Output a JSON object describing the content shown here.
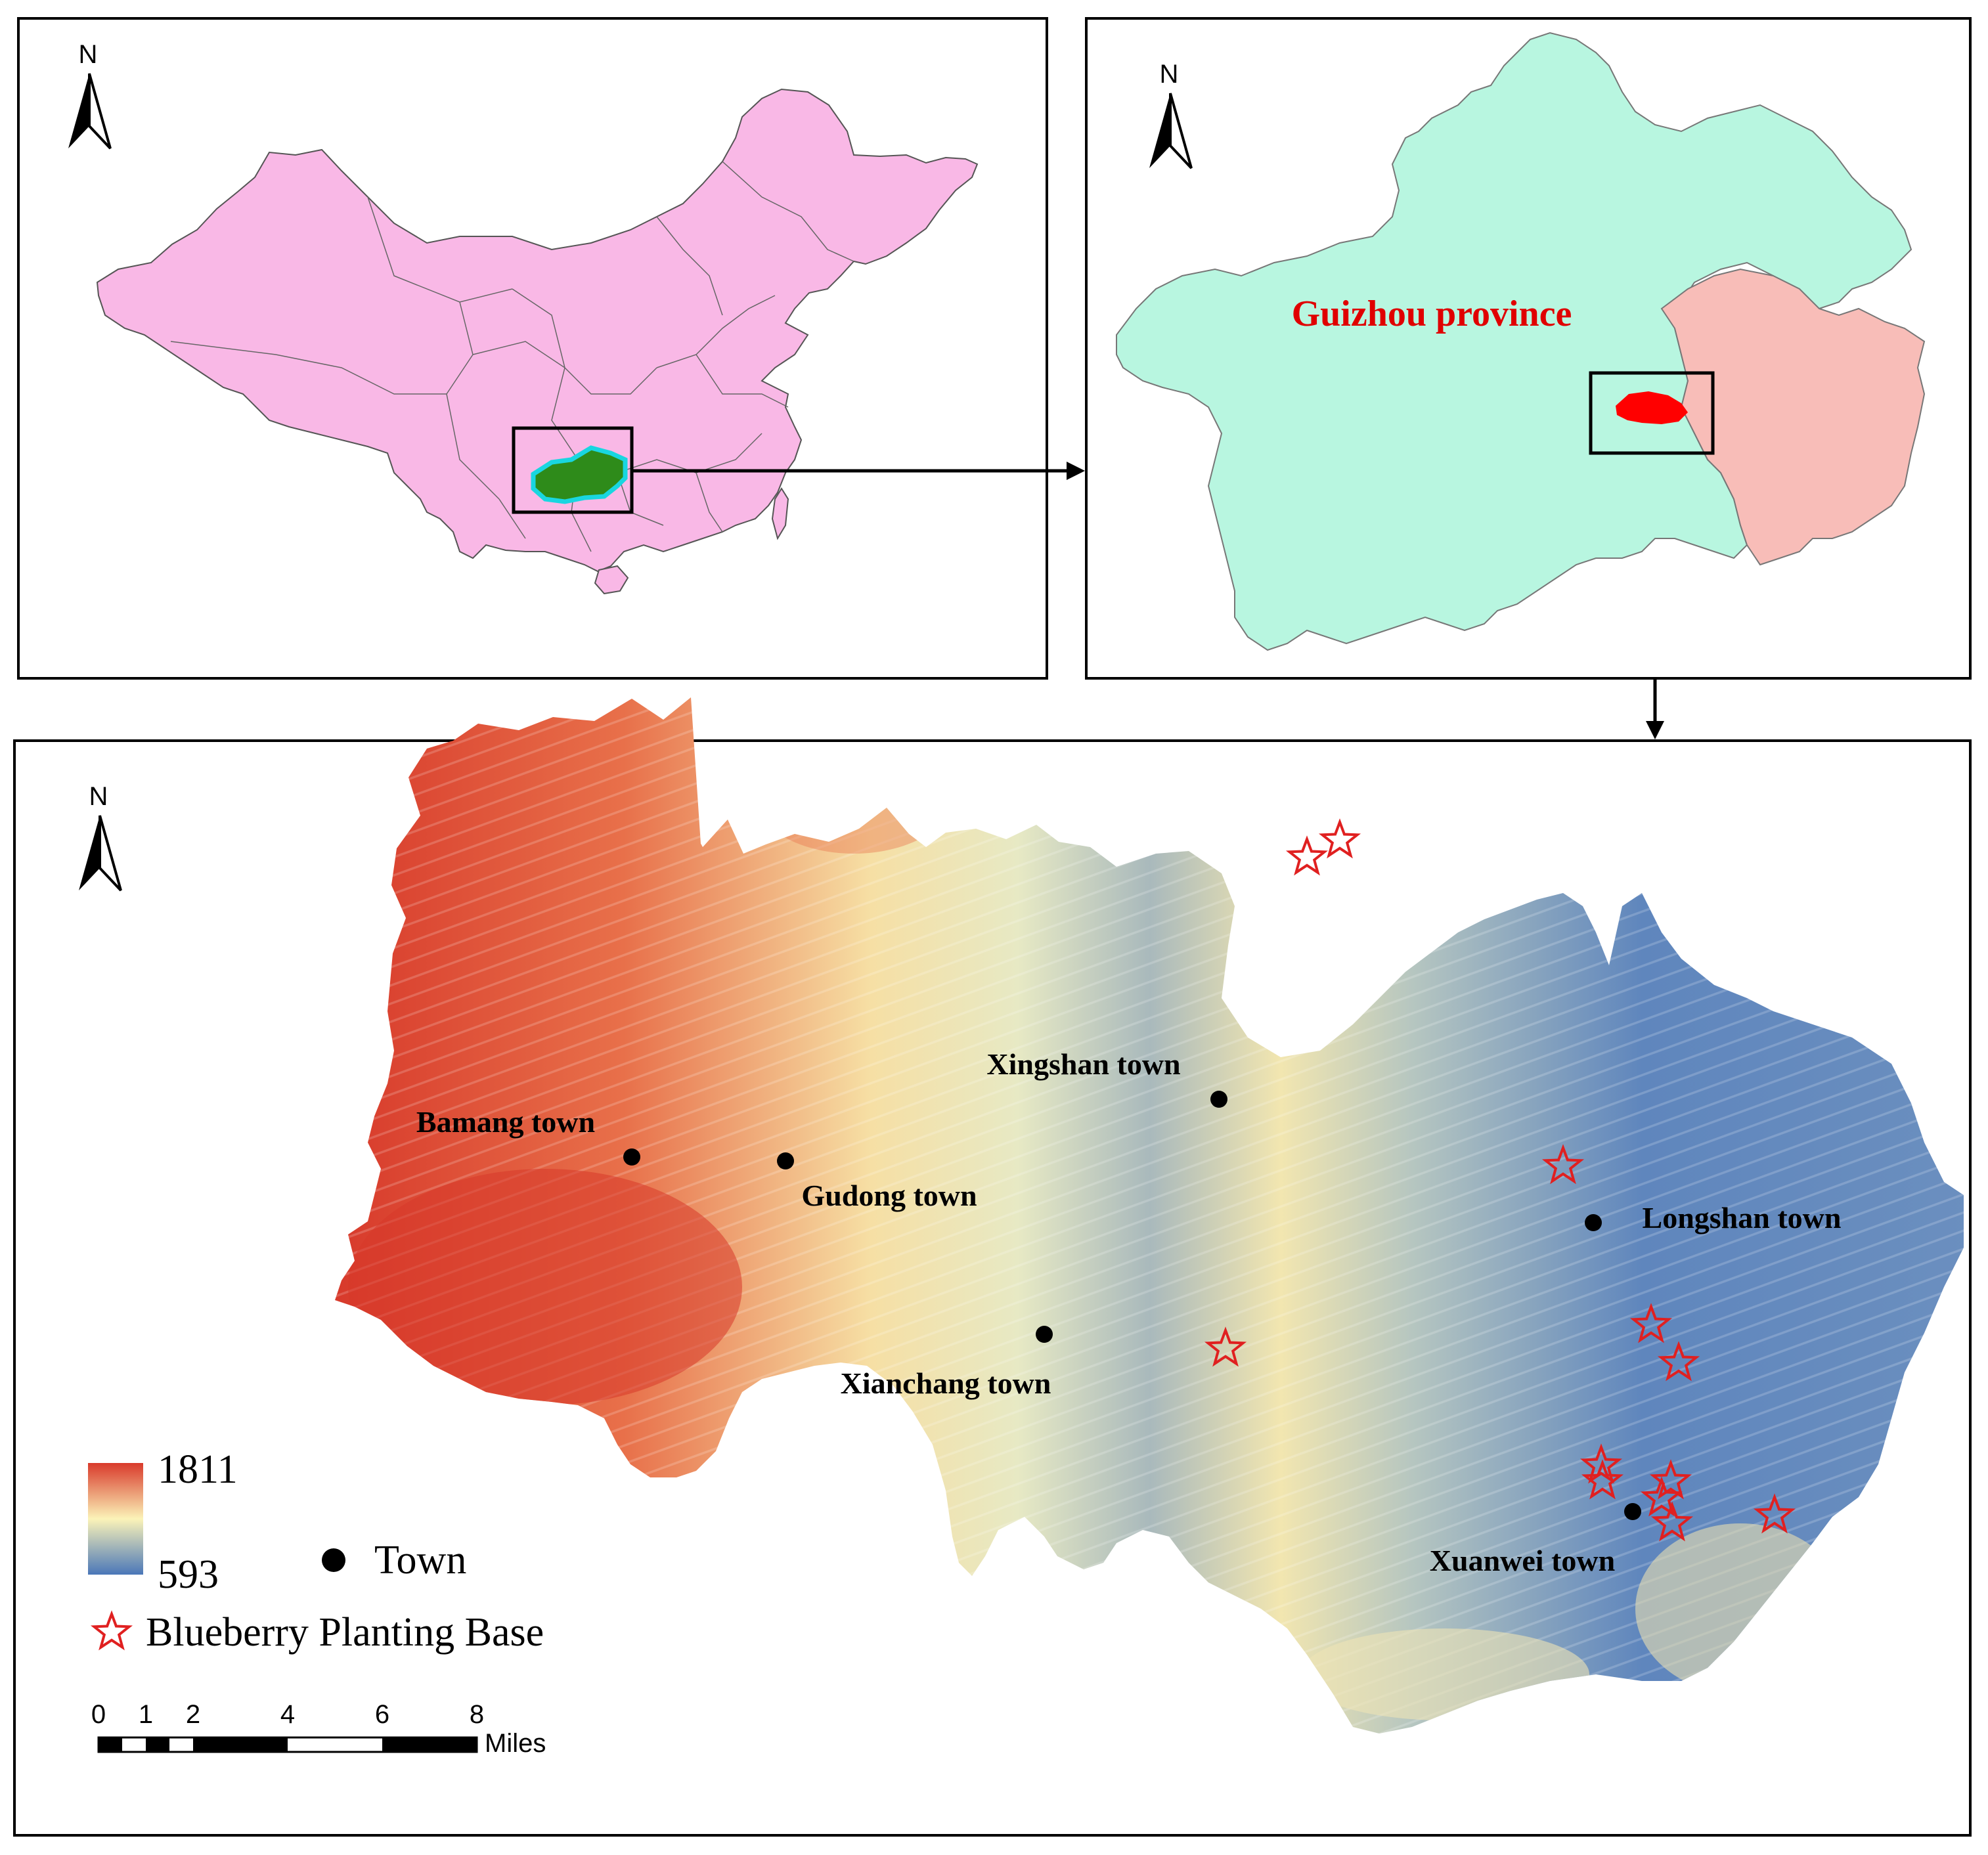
{
  "north_label": "N",
  "guizhou_label": "Guizhou province",
  "towns": [
    {
      "name": "Bamang  town"
    },
    {
      "name": "Gudong  town"
    },
    {
      "name": "Xingshan  town"
    },
    {
      "name": "Xianchang  town"
    },
    {
      "name": "Longshan town"
    },
    {
      "name": "Xuanwei  town"
    }
  ],
  "legend": {
    "elev_max": "1811",
    "elev_min": "593",
    "town_label": "Town",
    "base_label": "Blueberry Planting Base"
  },
  "scale_bar": {
    "ticks": [
      "0",
      "1",
      "2",
      "4",
      "6",
      "8"
    ],
    "unit": "Miles"
  },
  "colors": {
    "china": "#f9b8e6",
    "guizhou_in_china": "#2e8b1a",
    "guizhou_outline": "#19d6e0",
    "guizhou": "#b8f6e0",
    "neighbor": "#f8bdb8",
    "study_area": "#ff0000",
    "label_red": "#e00000",
    "star": "#e02020",
    "elev_high": "#d93a2b",
    "elev_mid": "#fbf3b8",
    "elev_low": "#4a77b8"
  }
}
